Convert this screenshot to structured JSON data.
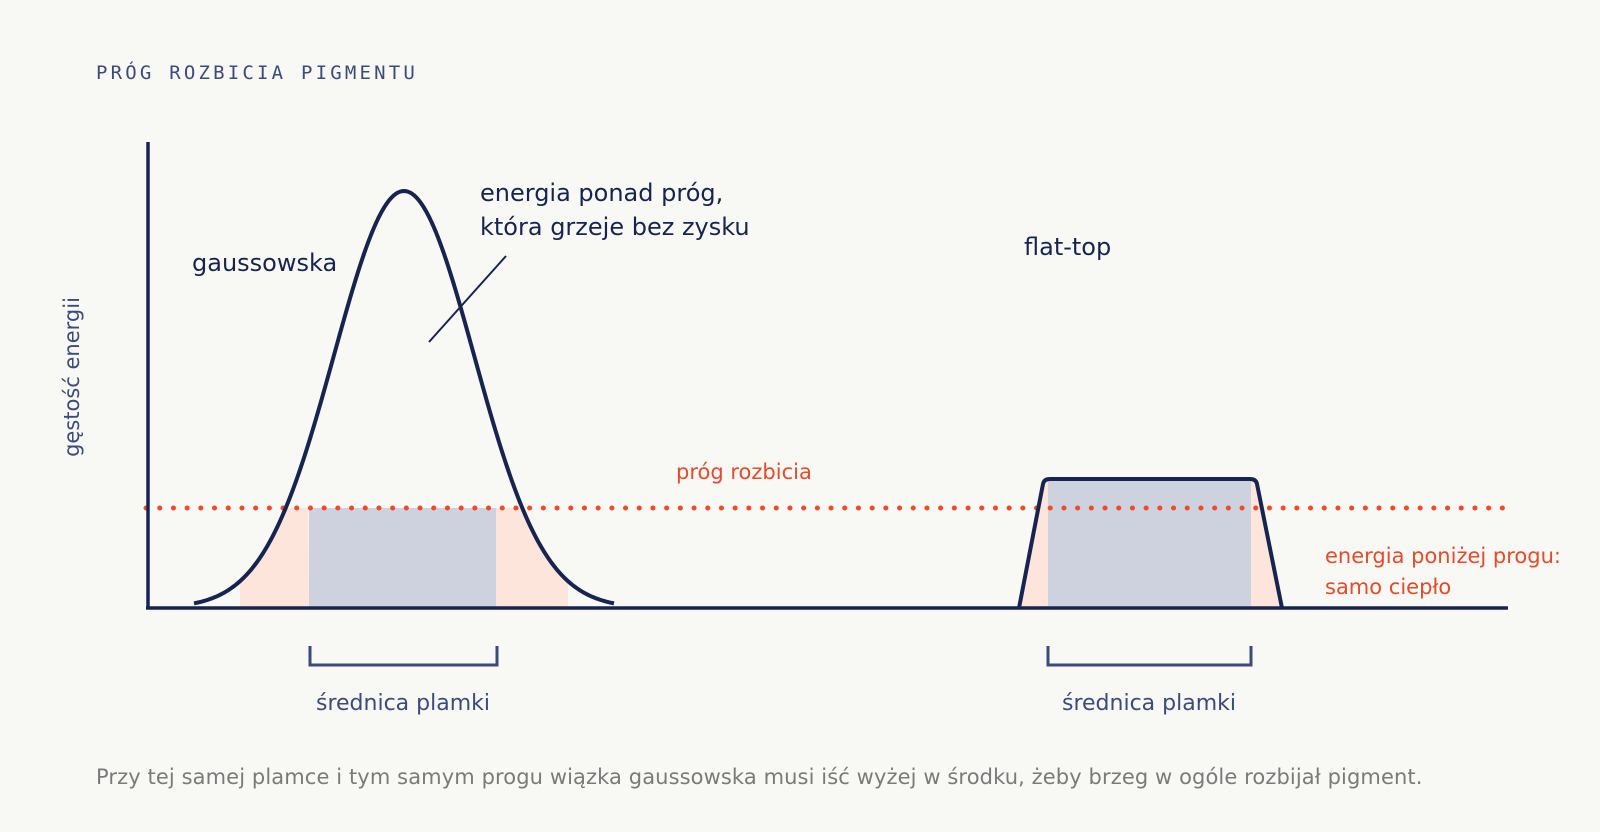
{
  "title": "PRÓG ROZBICIA PIGMENTU",
  "axis": {
    "ylabel": "gęstość energii"
  },
  "labels": {
    "gaussian": "gaussowska",
    "flat_top": "flat-top",
    "excess_line1": "energia ponad próg,",
    "excess_line2": "która grzeje bez zysku",
    "threshold": "próg rozbicia",
    "below_line1": "energia poniżej progu:",
    "below_line2": "samo ciepło",
    "spot_left": "średnica plamki",
    "spot_right": "średnica plamki"
  },
  "caption": "Przy tej samej plamce i tym samym progu wiązka gaussowska musi iść wyżej w środku, żeby brzeg w ogóle rozbijał pigment.",
  "colors": {
    "curve": "#182450",
    "threshold": "#f04a28",
    "threshold_text": "#e34b2c",
    "useful_fill": "#ced2de",
    "waste_fill": "#fde5dc",
    "bracket": "#3c4a7c",
    "background": "#f8f8f4"
  }
}
